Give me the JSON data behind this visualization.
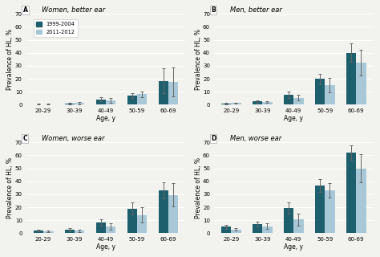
{
  "panels": [
    {
      "label": "A",
      "title": "Women, better ear",
      "show_legend": true,
      "bars_1999": [
        0.5,
        1.0,
        4.2,
        7.0,
        18.5
      ],
      "bars_2011": [
        0.5,
        1.2,
        3.2,
        8.0,
        17.5
      ],
      "err_1999": [
        0.4,
        0.7,
        1.5,
        1.8,
        9.5
      ],
      "err_2011": [
        0.4,
        0.7,
        2.0,
        2.0,
        11.0
      ],
      "ylim": [
        0,
        70
      ]
    },
    {
      "label": "B",
      "title": "Men, better ear",
      "show_legend": false,
      "bars_1999": [
        1.0,
        2.5,
        7.5,
        20.0,
        40.0
      ],
      "bars_2011": [
        1.2,
        2.0,
        5.5,
        15.0,
        32.5
      ],
      "err_1999": [
        0.6,
        1.0,
        2.5,
        4.0,
        7.0
      ],
      "err_2011": [
        0.5,
        0.8,
        2.0,
        5.5,
        10.0
      ],
      "ylim": [
        0,
        70
      ]
    },
    {
      "label": "C",
      "title": "Women, worse ear",
      "show_legend": false,
      "bars_1999": [
        2.0,
        3.0,
        8.5,
        19.0,
        33.0
      ],
      "bars_2011": [
        1.5,
        2.0,
        5.0,
        14.0,
        29.5
      ],
      "err_1999": [
        0.8,
        1.2,
        2.5,
        4.5,
        6.0
      ],
      "err_2011": [
        0.7,
        1.0,
        2.5,
        6.0,
        9.0
      ],
      "ylim": [
        0,
        70
      ]
    },
    {
      "label": "D",
      "title": "Men, worse ear",
      "show_legend": false,
      "bars_1999": [
        5.0,
        7.0,
        19.5,
        37.0,
        62.0
      ],
      "bars_2011": [
        3.0,
        5.5,
        10.5,
        33.0,
        50.0
      ],
      "err_1999": [
        1.5,
        2.0,
        4.5,
        5.0,
        5.5
      ],
      "err_2011": [
        1.0,
        2.0,
        4.5,
        5.5,
        11.0
      ],
      "ylim": [
        0,
        70
      ]
    }
  ],
  "age_labels": [
    "20-29",
    "30-39",
    "40-49",
    "50-59",
    "60-69"
  ],
  "color_1999": "#1e5f6e",
  "color_2011": "#a8c8d8",
  "legend_labels": [
    "1999-2004",
    "2011-2012"
  ],
  "xlabel": "Age, y",
  "ylabel": "Prevalence of HL, %",
  "yticks": [
    0,
    10,
    20,
    30,
    40,
    50,
    60,
    70
  ],
  "bar_width": 0.32,
  "background_color": "#f2f2ee",
  "grid_color": "#ffffff",
  "label_fontsize": 5.5,
  "title_fontsize": 6.0,
  "tick_fontsize": 5.0,
  "axis_label_fontsize": 5.5
}
